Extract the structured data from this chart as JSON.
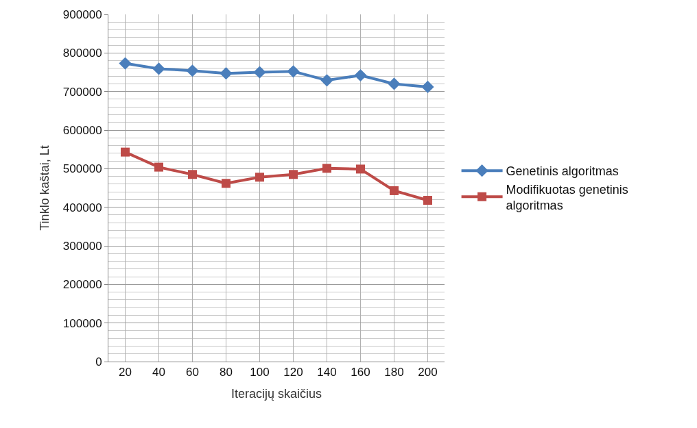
{
  "chart_data": {
    "type": "line",
    "xlabel": "Iteracijų skaičius",
    "ylabel": "Tinklo kaštai, Lt",
    "categories": [
      "20",
      "40",
      "60",
      "80",
      "100",
      "120",
      "140",
      "160",
      "180",
      "200"
    ],
    "series": [
      {
        "name": "Genetinis algoritmas",
        "color": "#4a7ebb",
        "marker": "diamond",
        "values": [
          773000,
          759000,
          754000,
          747000,
          750000,
          752000,
          729000,
          742000,
          720000,
          712000
        ]
      },
      {
        "name": "Modifikuotas genetinis algoritmas",
        "color": "#be4b48",
        "marker": "square",
        "values": [
          543000,
          504000,
          485000,
          462000,
          478000,
          485000,
          501000,
          499000,
          443000,
          418000
        ]
      }
    ],
    "ylim": [
      0,
      900000
    ],
    "yticks": [
      0,
      100000,
      200000,
      300000,
      400000,
      500000,
      600000,
      700000,
      800000,
      900000
    ],
    "grid": true,
    "legend": "right",
    "line_style": "solid"
  }
}
